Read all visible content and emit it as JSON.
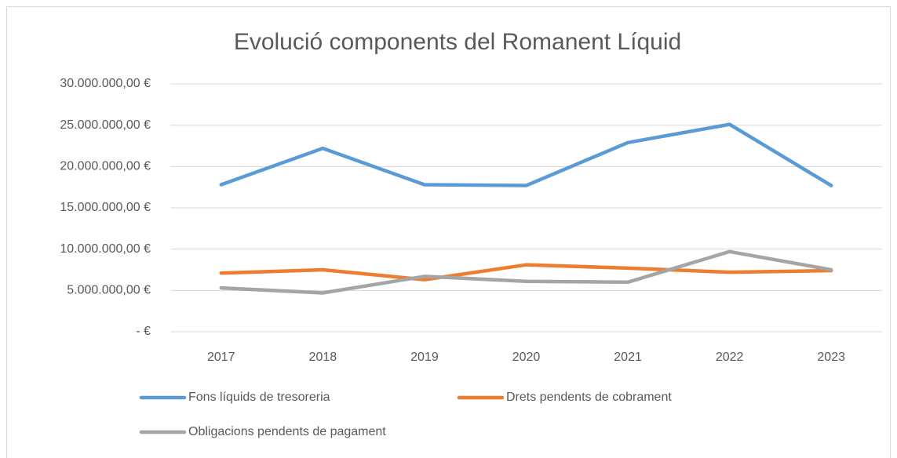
{
  "chart_data": {
    "type": "line",
    "title": "Evolució components del Romanent Líquid",
    "categories": [
      "2017",
      "2018",
      "2019",
      "2020",
      "2021",
      "2022",
      "2023"
    ],
    "series": [
      {
        "name": "Fons líquids de tresoreria",
        "color": "#5b9bd5",
        "values": [
          17800000,
          22200000,
          17800000,
          17700000,
          22900000,
          25100000,
          17700000
        ]
      },
      {
        "name": "Drets pendents de cobrament",
        "color": "#ed7d31",
        "values": [
          7100000,
          7500000,
          6300000,
          8100000,
          7700000,
          7200000,
          7400000
        ]
      },
      {
        "name": "Obligacions pendents de pagament",
        "color": "#a5a5a5",
        "values": [
          5300000,
          4700000,
          6700000,
          6100000,
          6000000,
          9700000,
          7500000
        ]
      }
    ],
    "ylim": [
      0,
      30000000
    ],
    "yticks": [
      {
        "value": 0,
        "label": "-   €"
      },
      {
        "value": 5000000,
        "label": "5.000.000,00 €"
      },
      {
        "value": 10000000,
        "label": "10.000.000,00 €"
      },
      {
        "value": 15000000,
        "label": "15.000.000,00 €"
      },
      {
        "value": 20000000,
        "label": "20.000.000,00 €"
      },
      {
        "value": 25000000,
        "label": "25.000.000,00 €"
      },
      {
        "value": 30000000,
        "label": "30.000.000,00 €"
      }
    ],
    "grid": true,
    "legend": "bottom"
  }
}
